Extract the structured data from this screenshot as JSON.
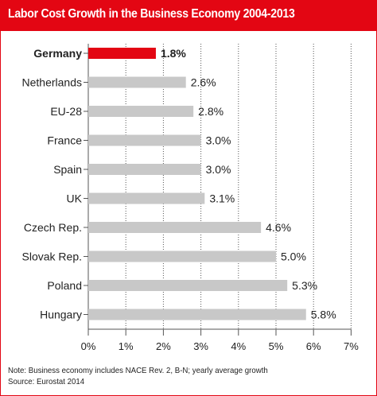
{
  "colors": {
    "accent": "#e30613",
    "bar": "#c8c8c8",
    "text": "#222222"
  },
  "notes": {
    "line1": "Note: Business economy includes NACE Rev. 2, B-N; yearly average growth",
    "line2": "Source: Eurostat 2014"
  },
  "chart_data": {
    "type": "bar",
    "orientation": "horizontal",
    "title": "Labor Cost Growth in the Business Economy 2004-2013",
    "xlabel": "",
    "ylabel": "",
    "xlim": [
      0,
      7
    ],
    "x_ticks": [
      "0%",
      "1%",
      "2%",
      "3%",
      "4%",
      "5%",
      "6%",
      "7%"
    ],
    "grid": true,
    "highlight": "Germany",
    "categories": [
      "Germany",
      "Netherlands",
      "EU-28",
      "France",
      "Spain",
      "UK",
      "Czech Rep.",
      "Slovak Rep.",
      "Poland",
      "Hungary"
    ],
    "values": [
      1.8,
      2.6,
      2.8,
      3.0,
      3.0,
      3.1,
      4.6,
      5.0,
      5.3,
      5.8
    ],
    "value_labels": [
      "1.8%",
      "2.6%",
      "2.8%",
      "3.0%",
      "3.0%",
      "3.1%",
      "4.6%",
      "5.0%",
      "5.3%",
      "5.8%"
    ]
  }
}
